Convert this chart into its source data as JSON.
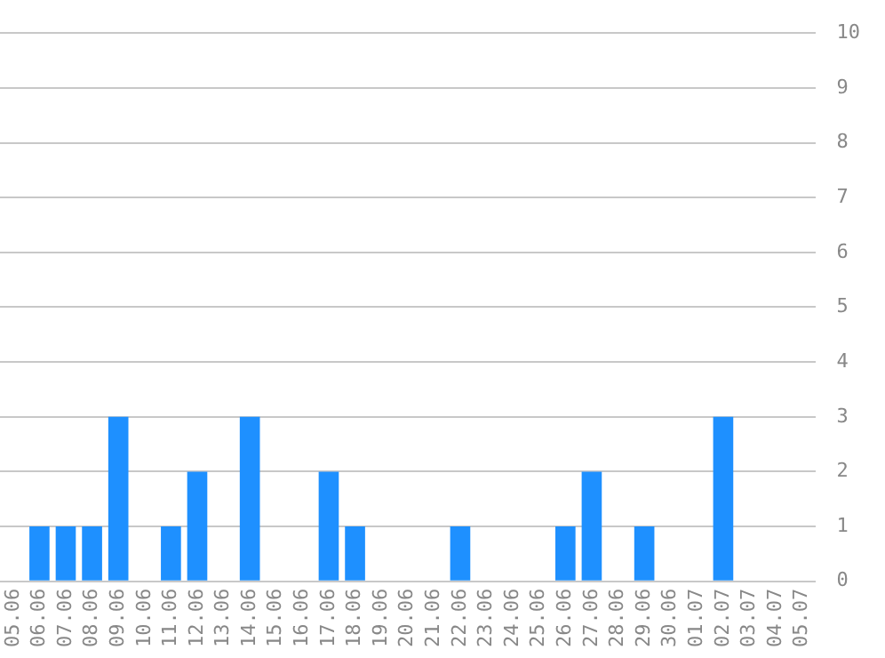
{
  "chart_data": {
    "type": "bar",
    "categories": [
      "05.06",
      "06.06",
      "07.06",
      "08.06",
      "09.06",
      "10.06",
      "11.06",
      "12.06",
      "13.06",
      "14.06",
      "15.06",
      "16.06",
      "17.06",
      "18.06",
      "19.06",
      "20.06",
      "21.06",
      "22.06",
      "23.06",
      "24.06",
      "25.06",
      "26.06",
      "27.06",
      "28.06",
      "29.06",
      "30.06",
      "01.07",
      "02.07",
      "03.07",
      "04.07",
      "05.07"
    ],
    "values": [
      0,
      1,
      1,
      1,
      3,
      0,
      1,
      2,
      0,
      3,
      0,
      0,
      2,
      1,
      0,
      0,
      0,
      1,
      0,
      0,
      0,
      1,
      2,
      0,
      1,
      0,
      0,
      3,
      0,
      0,
      0
    ],
    "color": "#1e90ff",
    "ylim": [
      0,
      10
    ],
    "yticks": [
      0,
      1,
      2,
      3,
      4,
      5,
      6,
      7,
      8,
      9,
      10
    ],
    "grid": "y",
    "legend": false
  }
}
